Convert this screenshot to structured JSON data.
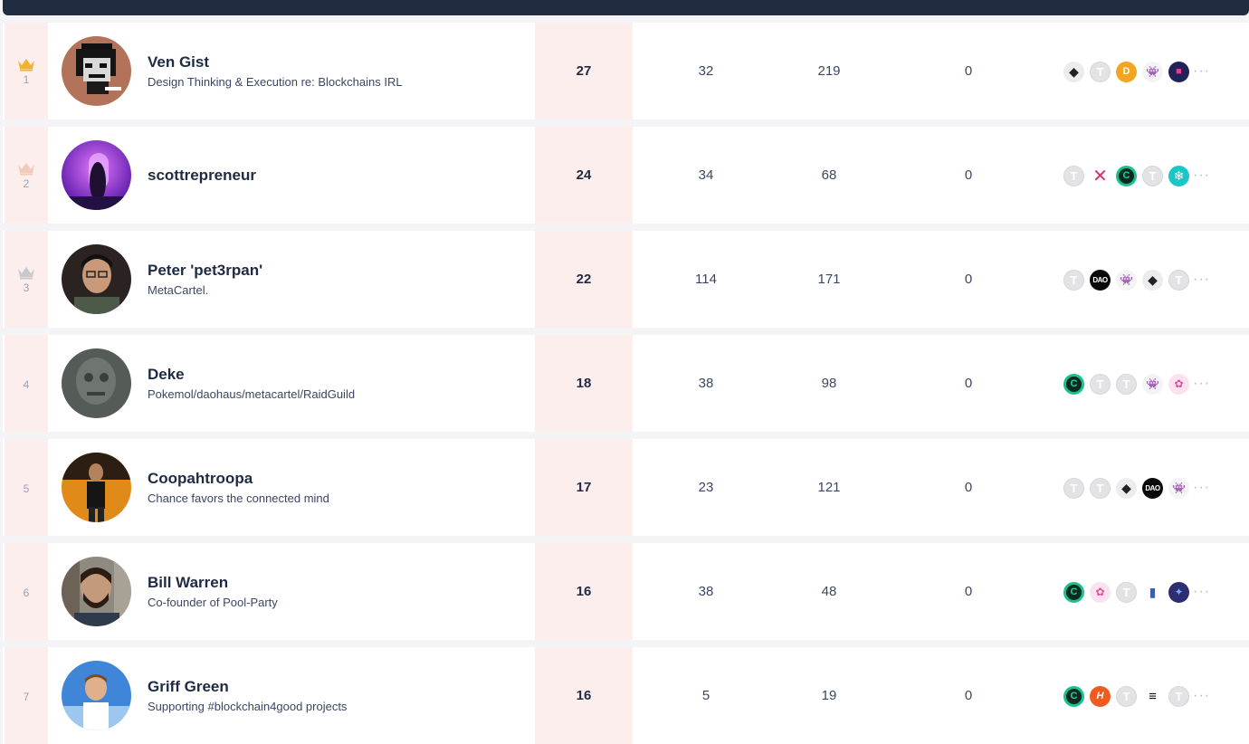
{
  "leaderboard": {
    "rows": [
      {
        "rank": "1",
        "name": "Ven Gist",
        "bio": "Design Thinking & Execution re: Blockchains IRL",
        "score": "27",
        "col2": "32",
        "col3": "219",
        "col4": "0",
        "badges": [
          "eth-icon",
          "t-token-icon",
          "gold-coin-icon",
          "ghost-icon",
          "dark-nft-icon"
        ],
        "more": "···"
      },
      {
        "rank": "2",
        "name": "scottrepreneur",
        "bio": "",
        "score": "24",
        "col2": "34",
        "col3": "68",
        "col4": "0",
        "badges": [
          "t-token-icon",
          "x-cross-icon",
          "green-ring-icon",
          "t-token-icon",
          "snowflake-icon"
        ],
        "more": "···"
      },
      {
        "rank": "3",
        "name": "Peter 'pet3rpan'",
        "bio": "MetaCartel.",
        "score": "22",
        "col2": "114",
        "col3": "171",
        "col4": "0",
        "badges": [
          "t-token-icon",
          "dao-icon",
          "ghost-icon",
          "eth-icon",
          "t-token-icon"
        ],
        "more": "···"
      },
      {
        "rank": "4",
        "name": "Deke",
        "bio": "Pokemol/daohaus/metacartel/RaidGuild",
        "score": "18",
        "col2": "38",
        "col3": "98",
        "col4": "0",
        "badges": [
          "green-ring-icon",
          "t-token-icon",
          "t-token-icon",
          "ghost-icon",
          "pink-unicorn-icon"
        ],
        "more": "···"
      },
      {
        "rank": "5",
        "name": "Coopahtroopa",
        "bio": "Chance favors the connected mind",
        "score": "17",
        "col2": "23",
        "col3": "121",
        "col4": "0",
        "badges": [
          "t-token-icon",
          "t-token-icon",
          "eth-icon",
          "dao-icon",
          "ghost-icon"
        ],
        "more": "···"
      },
      {
        "rank": "6",
        "name": "Bill Warren",
        "bio": "Co-founder of Pool-Party",
        "score": "16",
        "col2": "38",
        "col3": "48",
        "col4": "0",
        "badges": [
          "green-ring-icon",
          "pink-unicorn-icon",
          "t-token-icon",
          "blue-book-icon",
          "purple-invader-icon"
        ],
        "more": "···"
      },
      {
        "rank": "7",
        "name": "Griff Green",
        "bio": "Supporting #blockchain4good projects",
        "score": "16",
        "col2": "5",
        "col3": "19",
        "col4": "0",
        "badges": [
          "green-ring-icon",
          "orange-h-icon",
          "t-token-icon",
          "stack-icon",
          "t-token-icon"
        ],
        "more": "···"
      }
    ]
  },
  "colors": {
    "header": "#222c41",
    "highlight": "#fdeeee",
    "gold_crown": "#f0b429",
    "silver_crown": "#c9c9cc",
    "bronze_crown": "#f1cbb8"
  }
}
